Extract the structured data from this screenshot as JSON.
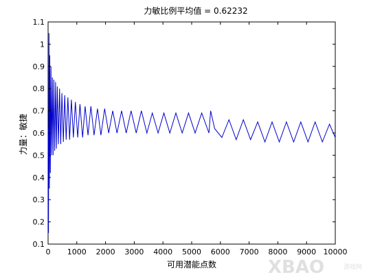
{
  "chart_data": {
    "type": "line",
    "title": "力敏比例平均值 = 0.62232",
    "xlabel": "可用潜能点数",
    "ylabel": "力量：敏捷",
    "xlim": [
      0,
      10000
    ],
    "ylim": [
      0.1,
      1.1
    ],
    "xticks": [
      0,
      1000,
      2000,
      3000,
      4000,
      5000,
      6000,
      7000,
      8000,
      9000,
      10000
    ],
    "yticks": [
      0.1,
      0.2,
      0.3,
      0.4,
      0.5,
      0.6,
      0.7,
      0.8,
      0.9,
      1,
      1.1
    ],
    "xtick_labels": [
      "0",
      "1000",
      "2000",
      "3000",
      "4000",
      "5000",
      "6000",
      "7000",
      "8000",
      "9000",
      "10000"
    ],
    "ytick_labels": [
      "0.1",
      "0.2",
      "0.3",
      "0.4",
      "0.5",
      "0.6",
      "0.7",
      "0.8",
      "0.9",
      "1",
      "1.1"
    ],
    "grid": false,
    "series": [
      {
        "color": "#0000cc",
        "x": [
          0,
          15,
          30,
          45,
          60,
          80,
          100,
          125,
          150,
          175,
          200,
          230,
          260,
          290,
          320,
          360,
          400,
          440,
          480,
          530,
          580,
          630,
          690,
          750,
          810,
          880,
          950,
          1030,
          1110,
          1200,
          1290,
          1390,
          1490,
          1600,
          1720,
          1840,
          1970,
          2110,
          2250,
          2400,
          2560,
          2720,
          2890,
          3070,
          3250,
          3440,
          3630,
          3830,
          4030,
          4240,
          4450,
          4670,
          4890,
          5120,
          5350,
          5600,
          5660,
          5800,
          6050,
          6300,
          6550,
          6800,
          7050,
          7300,
          7550,
          7800,
          8050,
          8300,
          8550,
          8800,
          9050,
          9300,
          9550,
          9800,
          10000
        ],
        "y": [
          0.62,
          0.15,
          1.05,
          0.35,
          0.95,
          0.42,
          0.9,
          0.5,
          0.85,
          0.5,
          0.84,
          0.52,
          0.83,
          0.53,
          0.81,
          0.55,
          0.8,
          0.55,
          0.78,
          0.56,
          0.77,
          0.57,
          0.76,
          0.57,
          0.75,
          0.58,
          0.74,
          0.58,
          0.73,
          0.58,
          0.72,
          0.59,
          0.72,
          0.59,
          0.71,
          0.59,
          0.71,
          0.6,
          0.7,
          0.6,
          0.7,
          0.6,
          0.7,
          0.6,
          0.7,
          0.6,
          0.69,
          0.6,
          0.69,
          0.6,
          0.69,
          0.6,
          0.69,
          0.6,
          0.69,
          0.6,
          0.7,
          0.62,
          0.58,
          0.66,
          0.57,
          0.66,
          0.57,
          0.65,
          0.56,
          0.65,
          0.56,
          0.65,
          0.56,
          0.65,
          0.56,
          0.65,
          0.56,
          0.64,
          0.58
        ]
      }
    ]
  },
  "watermark": {
    "text": "XBAO",
    "small_text": "游戏网"
  }
}
